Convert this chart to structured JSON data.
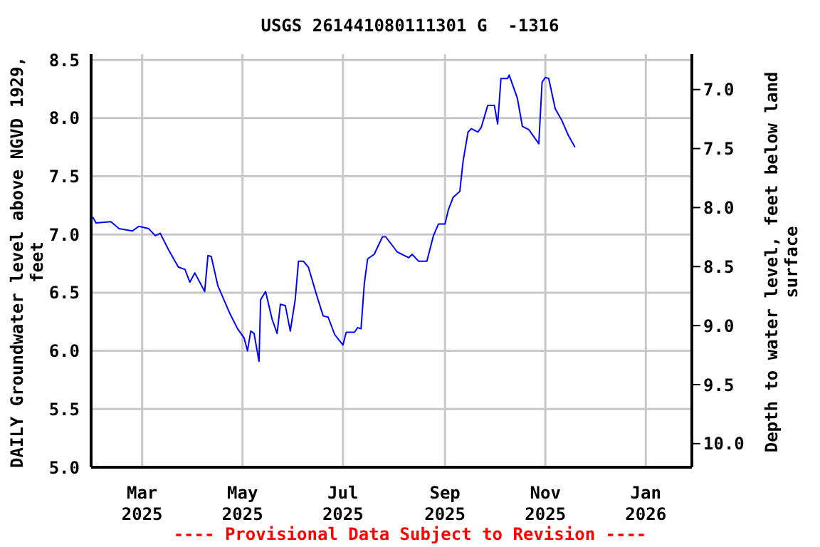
{
  "chart_data": {
    "type": "line",
    "title": "USGS 261441080111301 G  -1316",
    "ylabel": "DAILY Groundwater level above NGVD 1929, feet",
    "y2label": "Depth to water level, feet below land surface",
    "annotations": [
      "---- Provisional Data Subject to Revision ----"
    ],
    "x": [
      "2025-01-30",
      "2025-02-01",
      "2025-02-10",
      "2025-02-15",
      "2025-02-23",
      "2025-02-27",
      "2025-03-05",
      "2025-03-09",
      "2025-03-12",
      "2025-03-17",
      "2025-03-23",
      "2025-03-27",
      "2025-03-30",
      "2025-04-02",
      "2025-04-08",
      "2025-04-10",
      "2025-04-12",
      "2025-04-16",
      "2025-04-23",
      "2025-04-28",
      "2025-05-02",
      "2025-05-04",
      "2025-05-06",
      "2025-05-08",
      "2025-05-11",
      "2025-05-12",
      "2025-05-15",
      "2025-05-19",
      "2025-05-22",
      "2025-05-24",
      "2025-05-27",
      "2025-05-30",
      "2025-06-02",
      "2025-06-04",
      "2025-06-07",
      "2025-06-10",
      "2025-06-15",
      "2025-06-19",
      "2025-06-22",
      "2025-06-26",
      "2025-07-01",
      "2025-07-03",
      "2025-07-08",
      "2025-07-10",
      "2025-07-12",
      "2025-07-14",
      "2025-07-16",
      "2025-07-20",
      "2025-07-25",
      "2025-07-27",
      "2025-08-03",
      "2025-08-10",
      "2025-08-12",
      "2025-08-16",
      "2025-08-21",
      "2025-08-25",
      "2025-08-28",
      "2025-09-01",
      "2025-09-03",
      "2025-09-06",
      "2025-09-10",
      "2025-09-12",
      "2025-09-15",
      "2025-09-17",
      "2025-09-21",
      "2025-09-23",
      "2025-09-27",
      "2025-10-01",
      "2025-10-03",
      "2025-10-05",
      "2025-10-09",
      "2025-10-10",
      "2025-10-15",
      "2025-10-18",
      "2025-10-22",
      "2025-10-28",
      "2025-10-30",
      "2025-11-01",
      "2025-11-03",
      "2025-11-07",
      "2025-11-11",
      "2025-11-15",
      "2025-11-19"
    ],
    "series": [
      {
        "color": "#0000ff",
        "values": [
          7.15,
          7.1,
          7.11,
          7.05,
          7.03,
          7.07,
          7.05,
          6.99,
          7.01,
          6.87,
          6.72,
          6.7,
          6.59,
          6.67,
          6.51,
          6.82,
          6.81,
          6.56,
          6.33,
          6.19,
          6.11,
          6.0,
          6.17,
          6.15,
          5.91,
          6.44,
          6.51,
          6.27,
          6.15,
          6.4,
          6.39,
          6.17,
          6.44,
          6.77,
          6.77,
          6.72,
          6.48,
          6.3,
          6.29,
          6.14,
          6.05,
          6.16,
          6.16,
          6.2,
          6.19,
          6.58,
          6.79,
          6.83,
          6.98,
          6.98,
          6.85,
          6.8,
          6.83,
          6.77,
          6.77,
          6.99,
          7.09,
          7.09,
          7.21,
          7.32,
          7.37,
          7.63,
          7.88,
          7.91,
          7.88,
          7.92,
          8.11,
          8.11,
          7.95,
          8.34,
          8.34,
          8.37,
          8.17,
          7.93,
          7.9,
          7.78,
          8.31,
          8.35,
          8.34,
          8.08,
          7.98,
          7.85,
          7.75
        ]
      }
    ],
    "xlim": [
      "2025-01-29",
      "2026-01-29"
    ],
    "xticks": [
      {
        "value": "2025-03-01",
        "label": "Mar\n2025"
      },
      {
        "value": "2025-05-01",
        "label": "May\n2025"
      },
      {
        "value": "2025-07-01",
        "label": "Jul\n2025"
      },
      {
        "value": "2025-09-01",
        "label": "Sep\n2025"
      },
      {
        "value": "2025-11-01",
        "label": "Nov\n2025"
      },
      {
        "value": "2026-01-01",
        "label": "Jan\n2026"
      }
    ],
    "ylim": [
      5.0,
      8.55
    ],
    "yticks": [
      {
        "value": 5,
        "label": "5.0"
      },
      {
        "value": 5.5,
        "label": "5.5"
      },
      {
        "value": 6,
        "label": "6.0"
      },
      {
        "value": 6.5,
        "label": "6.5"
      },
      {
        "value": 7,
        "label": "7.0"
      },
      {
        "value": 7.5,
        "label": "7.5"
      },
      {
        "value": 8,
        "label": "8.0"
      },
      {
        "value": 8.5,
        "label": "8.5"
      }
    ],
    "y2lim": [
      10.2,
      6.7
    ],
    "y2ticks": [
      {
        "value": 7,
        "label": "7.0"
      },
      {
        "value": 7.5,
        "label": "7.5"
      },
      {
        "value": 8,
        "label": "8.0"
      },
      {
        "value": 8.5,
        "label": "8.5"
      },
      {
        "value": 9,
        "label": "9.0"
      },
      {
        "value": 9.5,
        "label": "9.5"
      },
      {
        "value": 10,
        "label": "10.0"
      }
    ],
    "grid": true,
    "line_style": "solid",
    "marker": "none"
  }
}
